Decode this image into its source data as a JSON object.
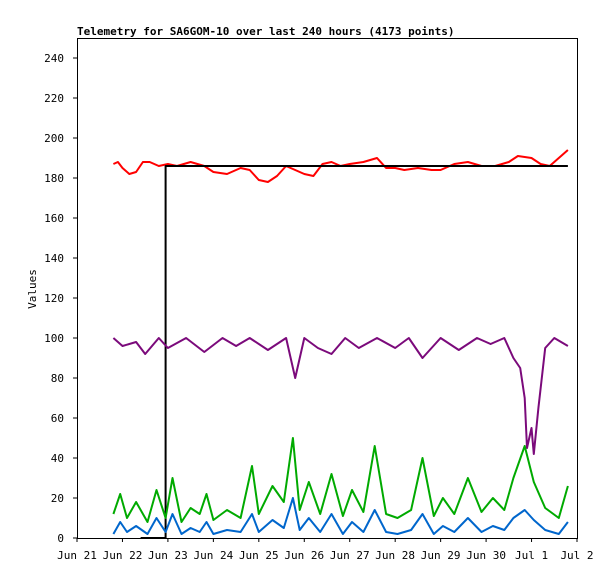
{
  "chart_data": {
    "type": "line",
    "title": "Telemetry for SA6GOM-10 over last 240 hours (4173 points)",
    "ylabel": "Values",
    "xlabel": "",
    "ylim": [
      0,
      250
    ],
    "xlim": [
      0,
      11
    ],
    "y_ticks": [
      0,
      20,
      40,
      60,
      80,
      100,
      120,
      140,
      160,
      180,
      200,
      220,
      240
    ],
    "x_ticks": [
      {
        "x": 0,
        "label": "Jun 21"
      },
      {
        "x": 1,
        "label": "Jun 22"
      },
      {
        "x": 2,
        "label": "Jun 23"
      },
      {
        "x": 3,
        "label": "Jun 24"
      },
      {
        "x": 4,
        "label": "Jun 25"
      },
      {
        "x": 5,
        "label": "Jun 26"
      },
      {
        "x": 6,
        "label": "Jun 27"
      },
      {
        "x": 7,
        "label": "Jun 28"
      },
      {
        "x": 8,
        "label": "Jun 29"
      },
      {
        "x": 9,
        "label": "Jun 30"
      },
      {
        "x": 10,
        "label": "Jul 1"
      },
      {
        "x": 11,
        "label": "Jul 2"
      }
    ],
    "grid": false,
    "legend": "none",
    "x_unit": "days since Jun 21",
    "series": [
      {
        "color": "#ff0000",
        "x": [
          0.8,
          0.9,
          1.0,
          1.15,
          1.3,
          1.45,
          1.6,
          1.8,
          2.0,
          2.2,
          2.5,
          2.8,
          3.0,
          3.3,
          3.6,
          3.8,
          4.0,
          4.2,
          4.4,
          4.6,
          4.8,
          5.0,
          5.2,
          5.4,
          5.6,
          5.8,
          6.0,
          6.3,
          6.6,
          6.8,
          7.0,
          7.2,
          7.5,
          7.8,
          8.0,
          8.3,
          8.6,
          8.9,
          9.2,
          9.5,
          9.7,
          10.0,
          10.2,
          10.4,
          10.6,
          10.8
        ],
        "values": [
          187,
          188,
          185,
          182,
          183,
          188,
          188,
          186,
          187,
          186,
          188,
          186,
          183,
          182,
          185,
          184,
          179,
          178,
          181,
          186,
          184,
          182,
          181,
          187,
          188,
          186,
          187,
          188,
          190,
          185,
          185,
          184,
          185,
          184,
          184,
          187,
          188,
          186,
          186,
          188,
          191,
          190,
          187,
          186,
          190,
          194
        ]
      },
      {
        "color": "#000000",
        "x": [
          1.4,
          1.95,
          1.95,
          10.8
        ],
        "values": [
          0,
          0,
          186,
          186
        ]
      },
      {
        "color": "#7b0a7b",
        "x": [
          0.8,
          1.0,
          1.3,
          1.5,
          1.8,
          2.0,
          2.4,
          2.8,
          3.2,
          3.5,
          3.8,
          4.2,
          4.6,
          4.8,
          5.0,
          5.3,
          5.6,
          5.9,
          6.2,
          6.6,
          7.0,
          7.3,
          7.6,
          8.0,
          8.4,
          8.8,
          9.1,
          9.4,
          9.6,
          9.75,
          9.85,
          9.9,
          10.0,
          10.05,
          10.15,
          10.3,
          10.5,
          10.8
        ],
        "values": [
          100,
          96,
          98,
          92,
          100,
          95,
          100,
          93,
          100,
          96,
          100,
          94,
          100,
          80,
          100,
          95,
          92,
          100,
          95,
          100,
          95,
          100,
          90,
          100,
          94,
          100,
          97,
          100,
          90,
          85,
          70,
          45,
          55,
          42,
          65,
          95,
          100,
          96
        ]
      },
      {
        "color": "#00aa00",
        "x": [
          0.8,
          0.95,
          1.1,
          1.3,
          1.55,
          1.75,
          1.95,
          2.1,
          2.3,
          2.5,
          2.7,
          2.85,
          3.0,
          3.3,
          3.6,
          3.85,
          4.0,
          4.3,
          4.55,
          4.75,
          4.9,
          5.1,
          5.35,
          5.6,
          5.85,
          6.05,
          6.3,
          6.55,
          6.8,
          7.05,
          7.35,
          7.6,
          7.85,
          8.05,
          8.3,
          8.6,
          8.9,
          9.15,
          9.4,
          9.6,
          9.85,
          10.05,
          10.3,
          10.6,
          10.8
        ],
        "values": [
          12,
          22,
          10,
          18,
          8,
          24,
          10,
          30,
          8,
          15,
          12,
          22,
          9,
          14,
          10,
          36,
          12,
          26,
          18,
          50,
          14,
          28,
          12,
          32,
          11,
          24,
          13,
          46,
          12,
          10,
          14,
          40,
          11,
          20,
          12,
          30,
          13,
          20,
          14,
          30,
          46,
          28,
          15,
          10,
          26
        ]
      },
      {
        "color": "#0066cc",
        "x": [
          0.8,
          0.95,
          1.1,
          1.3,
          1.55,
          1.75,
          1.95,
          2.1,
          2.3,
          2.5,
          2.7,
          2.85,
          3.0,
          3.3,
          3.6,
          3.85,
          4.0,
          4.3,
          4.55,
          4.75,
          4.9,
          5.1,
          5.35,
          5.6,
          5.85,
          6.05,
          6.3,
          6.55,
          6.8,
          7.05,
          7.35,
          7.6,
          7.85,
          8.05,
          8.3,
          8.6,
          8.9,
          9.15,
          9.4,
          9.6,
          9.85,
          10.05,
          10.3,
          10.6,
          10.8
        ],
        "values": [
          2,
          8,
          3,
          6,
          2,
          10,
          3,
          12,
          2,
          5,
          3,
          8,
          2,
          4,
          3,
          12,
          3,
          9,
          5,
          20,
          4,
          10,
          3,
          12,
          2,
          8,
          3,
          14,
          3,
          2,
          4,
          12,
          2,
          6,
          3,
          10,
          3,
          6,
          4,
          10,
          14,
          9,
          4,
          2,
          8
        ]
      }
    ]
  }
}
